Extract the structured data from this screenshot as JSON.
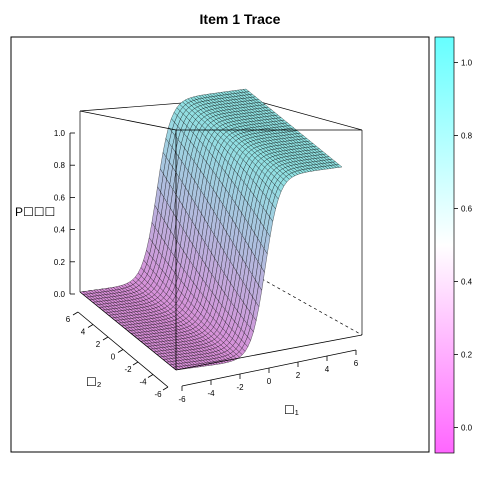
{
  "chart_data": {
    "type": "surface",
    "title": "Item 1 Trace",
    "zlabel": "P☐☐☐",
    "xlabel": "☐₁",
    "ylabel": "☐₂",
    "x_ticks": [
      "-6",
      "-4",
      "-2",
      "0",
      "2",
      "4",
      "6"
    ],
    "y_ticks": [
      "6",
      "4",
      "2",
      "0",
      "-2",
      "-4",
      "-6"
    ],
    "z_ticks": [
      "0.0",
      "0.2",
      "0.4",
      "0.6",
      "0.8",
      "1.0"
    ],
    "x_range": [
      -6,
      6
    ],
    "y_range": [
      -6,
      6
    ],
    "zlim": [
      0,
      1
    ],
    "function": "logistic P = 1 / (1 + exp(-(a1*theta1 + a2*theta2)))",
    "a1": 2.0,
    "a2": 0.15,
    "colorbar": {
      "ticks": [
        "1.0",
        "0.8",
        "0.6",
        "0.4",
        "0.2",
        "0.0"
      ],
      "range": [
        -0.07,
        1.07
      ],
      "low_color": "#ff66ff",
      "mid_color": "#ffffff",
      "high_color": "#66ffff"
    },
    "surface_low_color": "#d98fd9",
    "surface_high_color": "#8fe3e3",
    "grid_color": "#000000"
  }
}
